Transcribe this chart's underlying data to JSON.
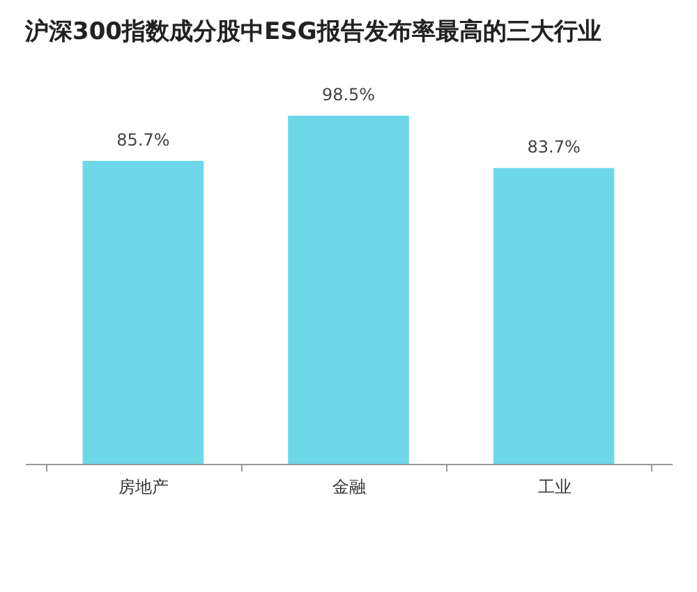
{
  "chart_data": {
    "type": "bar",
    "title": "沪深300指数成分股中ESG报告发布率最高的三大行业",
    "categories": [
      "房地产",
      "金融",
      "工业"
    ],
    "values": [
      85.7,
      98.5,
      83.7
    ],
    "value_labels": [
      "85.7%",
      "98.5%",
      "83.7%"
    ],
    "color": "#5cd3e6",
    "grid": false
  }
}
